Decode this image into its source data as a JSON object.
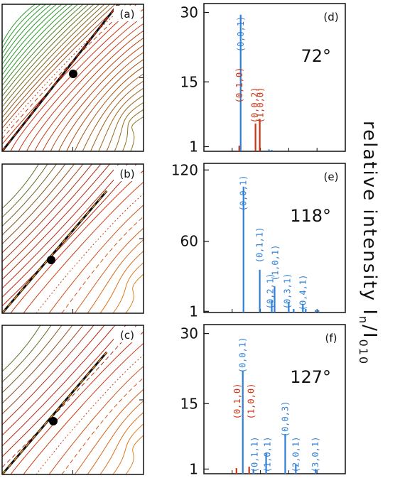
{
  "colors": {
    "blue": "#2f7fd6",
    "red": "#cc3311",
    "green": "#2a9a2a",
    "orange": "#e08a1e",
    "axis": "#111111"
  },
  "ylabel": {
    "main": "relative intensity  I",
    "sub1": "n",
    "slash": "/",
    "sub2": "I",
    "sub3": "010"
  },
  "contour_panels": [
    {
      "label": "(a)",
      "style": "green-red"
    },
    {
      "label": "(b)",
      "style": "red-orange"
    },
    {
      "label": "(c)",
      "style": "red-orange-low"
    }
  ],
  "chart_data": [
    {
      "type": "bar",
      "panel_label": "(d)",
      "angle_label": "72°",
      "yticks": [
        "30",
        "15",
        "1"
      ],
      "ylim": [
        0,
        31
      ],
      "peaks": [
        {
          "x": 0.25,
          "value": 1.2,
          "color": "red",
          "label": "(0,1,0)"
        },
        {
          "x": 0.26,
          "value": 29.5,
          "color": "blue",
          "label": "(0,0,1)"
        },
        {
          "x": 0.365,
          "value": 6.0,
          "color": "red",
          "label": "(0,0,2)"
        },
        {
          "x": 0.395,
          "value": 7.0,
          "color": "red",
          "label": "(1,0,0)"
        },
        {
          "x": 0.46,
          "value": 0.4,
          "color": "blue",
          "label": ""
        },
        {
          "x": 0.48,
          "value": 0.3,
          "color": "blue",
          "label": ""
        }
      ]
    },
    {
      "type": "bar",
      "panel_label": "(e)",
      "angle_label": "118°",
      "yticks": [
        "120",
        "60",
        "1"
      ],
      "ylim": [
        0,
        122
      ],
      "peaks": [
        {
          "x": 0.28,
          "value": 106,
          "color": "blue",
          "label": "(0,0,1)"
        },
        {
          "x": 0.395,
          "value": 36,
          "color": "blue",
          "label": "(0,1,1)"
        },
        {
          "x": 0.48,
          "value": 10,
          "color": "blue",
          "label": "(0,2,1)"
        },
        {
          "x": 0.5,
          "value": 22,
          "color": "blue",
          "label": "(1,0,1)"
        },
        {
          "x": 0.6,
          "value": 9,
          "color": "blue",
          "label": "(0,3,1)"
        },
        {
          "x": 0.635,
          "value": 3,
          "color": "blue",
          "label": ""
        },
        {
          "x": 0.7,
          "value": 7,
          "color": "blue",
          "label": "(0,4,1)"
        },
        {
          "x": 0.72,
          "value": 3,
          "color": "blue",
          "label": ""
        },
        {
          "x": 0.79,
          "value": 2,
          "color": "blue",
          "label": ""
        },
        {
          "x": 0.81,
          "value": 2,
          "color": "blue",
          "label": ""
        }
      ]
    },
    {
      "type": "bar",
      "panel_label": "(f)",
      "angle_label": "127°",
      "yticks": [
        "30",
        "15",
        "1"
      ],
      "ylim": [
        0,
        31
      ],
      "peaks": [
        {
          "x": 0.23,
          "value": 1.2,
          "color": "red",
          "label": "(0,1,0)"
        },
        {
          "x": 0.275,
          "value": 22,
          "color": "blue",
          "label": "(0,0,1)"
        },
        {
          "x": 0.32,
          "value": 1.5,
          "color": "red",
          "label": "(1,0,0)"
        },
        {
          "x": 0.35,
          "value": 1.0,
          "color": "blue",
          "label": "(0,1,1)"
        },
        {
          "x": 0.44,
          "value": 4.5,
          "color": "blue",
          "label": "(1,0,1)"
        },
        {
          "x": 0.575,
          "value": 8.5,
          "color": "blue",
          "label": "(0,0,3)"
        },
        {
          "x": 0.65,
          "value": 2.0,
          "color": "blue",
          "label": "(2,0,1)"
        },
        {
          "x": 0.79,
          "value": 1.0,
          "color": "blue",
          "label": "(3,0,1)"
        }
      ]
    }
  ]
}
